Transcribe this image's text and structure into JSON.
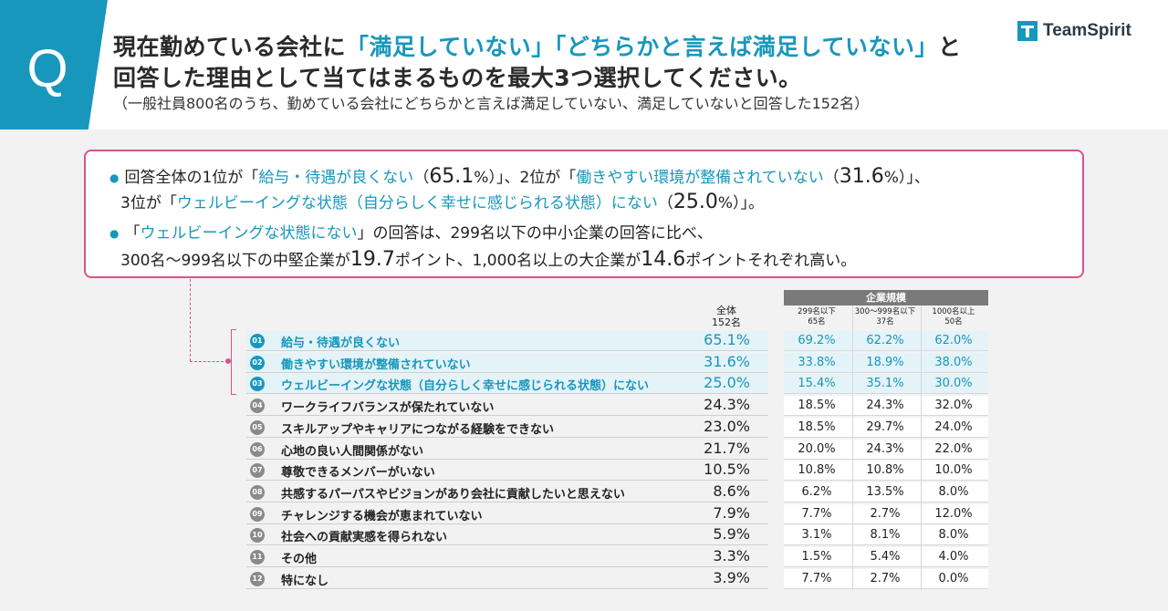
{
  "header": {
    "q_letter": "Q",
    "line1_part1": "現在勤めている会社に",
    "line1_hl1": "「満足していない」「どちらかと言えば満足していない」",
    "line1_part2": "と",
    "line2": "回答した理由として当てはまるものを最大3つ選択してください。",
    "line3": "（一般社員800名のうち、勤めている会社にどちらかと言えば満足していない、満足していないと回答した152名）",
    "logo_text": "TeamSpirit"
  },
  "summary": {
    "s1_a": "回答全体の1位が「",
    "s1_b": "給与・待遇が良くない",
    "s1_c": "（",
    "s1_d": "65.1",
    "s1_e": "%）」、2位が「",
    "s1_f": "働きやすい環境が整備されていない",
    "s1_g": "（",
    "s1_h": "31.6",
    "s1_i": "%）」、",
    "s2_a": "3位が「",
    "s2_b": "ウェルビーイングな状態（自分らしく幸せに感じられる状態）にない",
    "s2_c": "（",
    "s2_d": "25.0",
    "s2_e": "%）」。",
    "s3_a": "「",
    "s3_b": "ウェルビーイングな状態にない",
    "s3_c": "」の回答は、299名以下の中小企業の回答に比べ、",
    "s4_a": "300名〜999名以下の中堅企業が",
    "s4_b": "19.7",
    "s4_c": "ポイント、1,000名以上の大企業が",
    "s4_d": "14.6",
    "s4_e": "ポイントそれぞれ高い。"
  },
  "chart_data": {
    "type": "table",
    "total_header": [
      "全体",
      "152名"
    ],
    "segment_title": "企業規模",
    "segment_headers": [
      [
        "299名以下",
        "65名"
      ],
      [
        "300〜999名以下",
        "37名"
      ],
      [
        "1000名以上",
        "50名"
      ]
    ],
    "rows": [
      {
        "no": "01",
        "label": "給与・待遇が良くない",
        "total": "65.1%",
        "seg": [
          "69.2%",
          "62.2%",
          "62.0%"
        ],
        "top3": true
      },
      {
        "no": "02",
        "label": "働きやすい環境が整備されていない",
        "total": "31.6%",
        "seg": [
          "33.8%",
          "18.9%",
          "38.0%"
        ],
        "top3": true
      },
      {
        "no": "03",
        "label": "ウェルビーイングな状態（自分らしく幸せに感じられる状態）にない",
        "total": "25.0%",
        "seg": [
          "15.4%",
          "35.1%",
          "30.0%"
        ],
        "top3": true
      },
      {
        "no": "04",
        "label": "ワークライフバランスが保たれていない",
        "total": "24.3%",
        "seg": [
          "18.5%",
          "24.3%",
          "32.0%"
        ],
        "top3": false
      },
      {
        "no": "05",
        "label": "スキルアップやキャリアにつながる経験をできない",
        "total": "23.0%",
        "seg": [
          "18.5%",
          "29.7%",
          "24.0%"
        ],
        "top3": false
      },
      {
        "no": "06",
        "label": "心地の良い人間関係がない",
        "total": "21.7%",
        "seg": [
          "20.0%",
          "24.3%",
          "22.0%"
        ],
        "top3": false
      },
      {
        "no": "07",
        "label": "尊敬できるメンバーがいない",
        "total": "10.5%",
        "seg": [
          "10.8%",
          "10.8%",
          "10.0%"
        ],
        "top3": false
      },
      {
        "no": "08",
        "label": "共感するパーパスやビジョンがあり会社に貢献したいと思えない",
        "total": "8.6%",
        "seg": [
          "6.2%",
          "13.5%",
          "8.0%"
        ],
        "top3": false
      },
      {
        "no": "09",
        "label": "チャレンジする機会が恵まれていない",
        "total": "7.9%",
        "seg": [
          "7.7%",
          "2.7%",
          "12.0%"
        ],
        "top3": false
      },
      {
        "no": "10",
        "label": "社会への貢献実感を得られない",
        "total": "5.9%",
        "seg": [
          "3.1%",
          "8.1%",
          "8.0%"
        ],
        "top3": false
      },
      {
        "no": "11",
        "label": "その他",
        "total": "3.3%",
        "seg": [
          "1.5%",
          "5.4%",
          "4.0%"
        ],
        "top3": false
      },
      {
        "no": "12",
        "label": "特になし",
        "total": "3.9%",
        "seg": [
          "7.7%",
          "2.7%",
          "0.0%"
        ],
        "top3": false
      }
    ]
  }
}
